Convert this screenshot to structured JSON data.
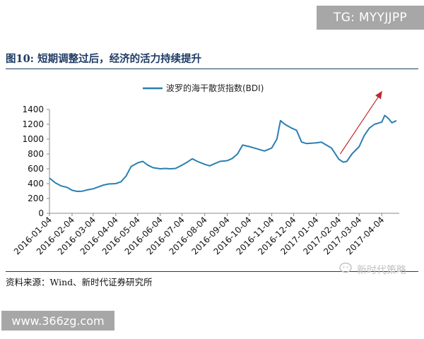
{
  "header": {
    "tg_badge": "TG: MYYJJPP",
    "figure_title": "图10:  短期调整过后，经济的活力持续提升"
  },
  "footer": {
    "source": "资料来源：Wind、新时代证券研究所",
    "watermark": "新时代策略",
    "site_badge": "www.366zg.com"
  },
  "colors": {
    "line": "#2a7fb1",
    "arrow": "#c0282d",
    "rule": "#1f3b64"
  },
  "chart_data": {
    "type": "line",
    "title": "",
    "legend": [
      "波罗的海干散货指数(BDI)"
    ],
    "legend_position": "top",
    "xlabel": "",
    "ylabel": "",
    "ylim": [
      0,
      1400
    ],
    "yticks": [
      0,
      200,
      400,
      600,
      800,
      1000,
      1200,
      1400
    ],
    "xticks": [
      "2016-01-04",
      "2016-02-04",
      "2016-03-04",
      "2016-04-04",
      "2016-05-04",
      "2016-06-04",
      "2016-07-04",
      "2016-08-04",
      "2016-09-04",
      "2016-10-04",
      "2016-11-04",
      "2016-12-04",
      "2017-01-04",
      "2017-02-04",
      "2017-03-04",
      "2017-04-04"
    ],
    "grid": false,
    "series": [
      {
        "name": "波罗的海干散货指数(BDI)",
        "points": [
          [
            "2016-01-04",
            475
          ],
          [
            "2016-01-12",
            410
          ],
          [
            "2016-01-20",
            370
          ],
          [
            "2016-01-28",
            350
          ],
          [
            "2016-02-04",
            310
          ],
          [
            "2016-02-11",
            295
          ],
          [
            "2016-02-18",
            298
          ],
          [
            "2016-02-25",
            315
          ],
          [
            "2016-03-04",
            330
          ],
          [
            "2016-03-11",
            355
          ],
          [
            "2016-03-18",
            380
          ],
          [
            "2016-03-25",
            395
          ],
          [
            "2016-04-04",
            400
          ],
          [
            "2016-04-11",
            425
          ],
          [
            "2016-04-18",
            500
          ],
          [
            "2016-04-25",
            630
          ],
          [
            "2016-05-04",
            680
          ],
          [
            "2016-05-11",
            700
          ],
          [
            "2016-05-18",
            650
          ],
          [
            "2016-05-25",
            615
          ],
          [
            "2016-06-04",
            600
          ],
          [
            "2016-06-11",
            605
          ],
          [
            "2016-06-18",
            600
          ],
          [
            "2016-06-25",
            605
          ],
          [
            "2016-07-04",
            650
          ],
          [
            "2016-07-11",
            690
          ],
          [
            "2016-07-18",
            735
          ],
          [
            "2016-07-25",
            700
          ],
          [
            "2016-08-04",
            660
          ],
          [
            "2016-08-11",
            640
          ],
          [
            "2016-08-18",
            670
          ],
          [
            "2016-08-25",
            700
          ],
          [
            "2016-09-04",
            710
          ],
          [
            "2016-09-11",
            740
          ],
          [
            "2016-09-18",
            800
          ],
          [
            "2016-09-25",
            920
          ],
          [
            "2016-10-04",
            900
          ],
          [
            "2016-10-11",
            880
          ],
          [
            "2016-10-18",
            860
          ],
          [
            "2016-10-25",
            840
          ],
          [
            "2016-11-04",
            880
          ],
          [
            "2016-11-11",
            1000
          ],
          [
            "2016-11-16",
            1250
          ],
          [
            "2016-11-22",
            1200
          ],
          [
            "2016-12-01",
            1150
          ],
          [
            "2016-12-08",
            1120
          ],
          [
            "2016-12-15",
            960
          ],
          [
            "2016-12-22",
            940
          ],
          [
            "2017-01-04",
            950
          ],
          [
            "2017-01-11",
            960
          ],
          [
            "2017-01-18",
            920
          ],
          [
            "2017-01-25",
            880
          ],
          [
            "2017-02-04",
            730
          ],
          [
            "2017-02-10",
            690
          ],
          [
            "2017-02-15",
            700
          ],
          [
            "2017-02-22",
            800
          ],
          [
            "2017-03-04",
            900
          ],
          [
            "2017-03-11",
            1050
          ],
          [
            "2017-03-18",
            1150
          ],
          [
            "2017-03-25",
            1200
          ],
          [
            "2017-04-04",
            1230
          ],
          [
            "2017-04-08",
            1320
          ],
          [
            "2017-04-13",
            1280
          ],
          [
            "2017-04-18",
            1220
          ],
          [
            "2017-04-24",
            1250
          ]
        ]
      }
    ],
    "annotations": [
      {
        "type": "arrow",
        "from": [
          "2017-02-06",
          800
        ],
        "to": [
          "2017-04-04",
          1640
        ]
      }
    ]
  }
}
